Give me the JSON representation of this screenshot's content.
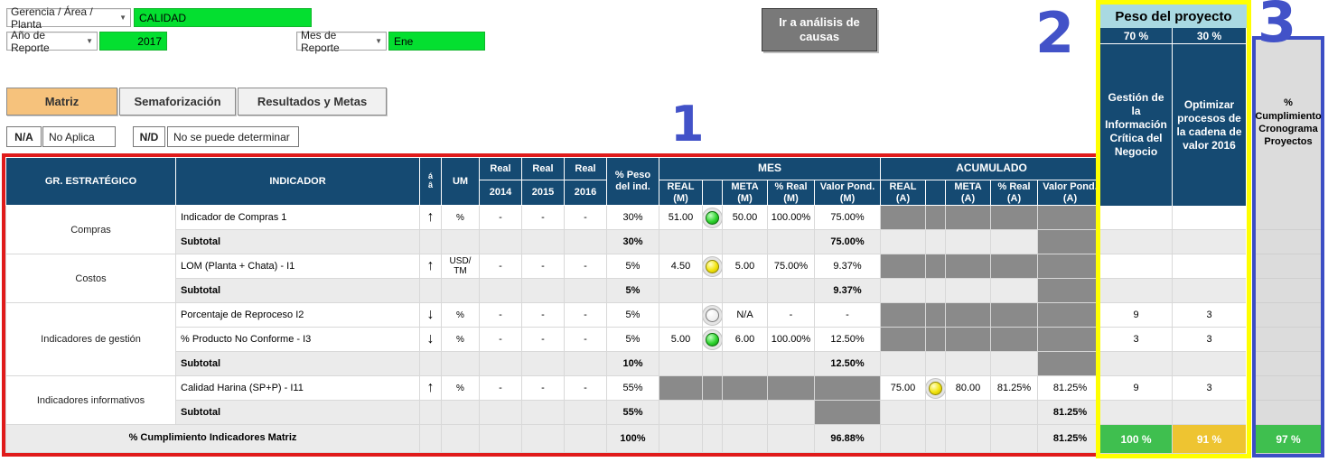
{
  "filters": {
    "gerencia_label": "Gerencia / Área / Planta",
    "gerencia_value": "CALIDAD",
    "anio_label": "Año de Reporte",
    "anio_value": "2017",
    "mes_label": "Mes de Reporte",
    "mes_value": "Ene"
  },
  "actions": {
    "analysis_button": "Ir a análisis de causas"
  },
  "tabs": [
    {
      "label": "Matriz",
      "active": true
    },
    {
      "label": "Semaforización",
      "active": false
    },
    {
      "label": "Resultados y Metas",
      "active": false
    }
  ],
  "legend": [
    {
      "code": "N/A",
      "text": "No Aplica"
    },
    {
      "code": "N/D",
      "text": "No se puede determinar"
    }
  ],
  "annotations": [
    "1",
    "2",
    "3"
  ],
  "table": {
    "header": {
      "group": "GR. ESTRATÉGICO",
      "indicator": "INDICADOR",
      "trend": [
        "á",
        "â"
      ],
      "um": "UM",
      "real": "Real",
      "years": [
        "2014",
        "2015",
        "2016"
      ],
      "peso": "% Peso del ind.",
      "mes": "MES",
      "acumulado": "ACUMULADO",
      "mes_cols": [
        "REAL (M)",
        "META (M)",
        "% Real (M)",
        "Valor Pond. (M)"
      ],
      "acum_cols": [
        "REAL (A)",
        "META (A)",
        "% Real (A)",
        "Valor Pond. (A)"
      ]
    },
    "rows": [
      {
        "kind": "indicator",
        "group": "Compras",
        "group_rows": 2,
        "name": "Indicador de Compras 1",
        "trend": "up",
        "um": "%",
        "years": [
          "-",
          "-",
          "-"
        ],
        "peso": "30%",
        "mes": {
          "real": "51.00",
          "light": "green",
          "meta": "50.00",
          "pct": "100.00%",
          "valor": "75.00%"
        },
        "acum": "blocked",
        "p70": "",
        "p30": ""
      },
      {
        "kind": "subtotal",
        "label": "Subtotal",
        "peso": "30%",
        "mes_valor": "75.00%",
        "acum_valor": "blocked"
      },
      {
        "kind": "indicator",
        "group": "Costos",
        "group_rows": 2,
        "name": "LOM (Planta + Chata) - I1",
        "trend": "up",
        "um": "USD/ TM",
        "years": [
          "-",
          "-",
          "-"
        ],
        "peso": "5%",
        "mes": {
          "real": "4.50",
          "light": "yellow",
          "meta": "5.00",
          "pct": "75.00%",
          "valor": "9.37%"
        },
        "acum": "blocked",
        "p70": "",
        "p30": ""
      },
      {
        "kind": "subtotal",
        "label": "Subtotal",
        "peso": "5%",
        "mes_valor": "9.37%",
        "acum_valor": "blocked"
      },
      {
        "kind": "indicator",
        "group": "Indicadores de gestión",
        "group_rows": 3,
        "name": "Porcentaje de Reproceso I2",
        "trend": "down",
        "um": "%",
        "years": [
          "-",
          "-",
          "-"
        ],
        "peso": "5%",
        "mes": {
          "real": "",
          "light": "white",
          "meta": "N/A",
          "pct": "-",
          "valor": "-"
        },
        "acum": "blocked",
        "p70": "9",
        "p30": "3"
      },
      {
        "kind": "indicator",
        "name": "% Producto No Conforme - I3",
        "trend": "down",
        "um": "%",
        "years": [
          "-",
          "-",
          "-"
        ],
        "peso": "5%",
        "mes": {
          "real": "5.00",
          "light": "green",
          "meta": "6.00",
          "pct": "100.00%",
          "valor": "12.50%"
        },
        "acum": "blocked",
        "p70": "3",
        "p30": "3"
      },
      {
        "kind": "subtotal",
        "label": "Subtotal",
        "peso": "10%",
        "mes_valor": "12.50%",
        "acum_valor": "blocked"
      },
      {
        "kind": "indicator",
        "group": "Indicadores informativos",
        "group_rows": 2,
        "name": "Calidad Harina (SP+P) - I11",
        "trend": "up",
        "um": "%",
        "years": [
          "-",
          "-",
          "-"
        ],
        "peso": "55%",
        "mes": "blocked",
        "acum": {
          "real": "75.00",
          "light": "yellow",
          "meta": "80.00",
          "pct": "81.25%",
          "valor": "81.25%"
        },
        "p70": "9",
        "p30": "3"
      },
      {
        "kind": "subtotal",
        "label": "Subtotal",
        "peso": "55%",
        "mes_valor": "blocked",
        "acum_valor": "81.25%"
      },
      {
        "kind": "total",
        "label": "% Cumplimiento Indicadores Matriz",
        "peso": "100%",
        "mes_valor": "96.88%",
        "acum_valor": "81.25%"
      }
    ]
  },
  "project_panel": {
    "title": "Peso del proyecto",
    "col_weights": [
      "70 %",
      "30 %"
    ],
    "col_names": [
      "Gestión de la Información Crítica del Negocio",
      "Optimizar procesos de la cadena de valor 2016"
    ],
    "totals": {
      "p70": "100 %",
      "p30": "91 %",
      "cron": "97 %"
    }
  },
  "cron_panel": {
    "title": "% Cumplimiento Cronograma Proyectos"
  },
  "colors": {
    "header_navy": "#154a72",
    "green_field": "#04df30",
    "success_green": "#3fbf4f",
    "warn_yellow": "#eec431",
    "alert_red": "#fe0000",
    "blocked_gray": "#8a8a8a",
    "tab_orange": "#f6c27c",
    "panel_teal": "#a9d9e2",
    "border_red": "#e01b1b",
    "border_yellow": "#ffff00",
    "border_blue": "#3c4ec5"
  }
}
